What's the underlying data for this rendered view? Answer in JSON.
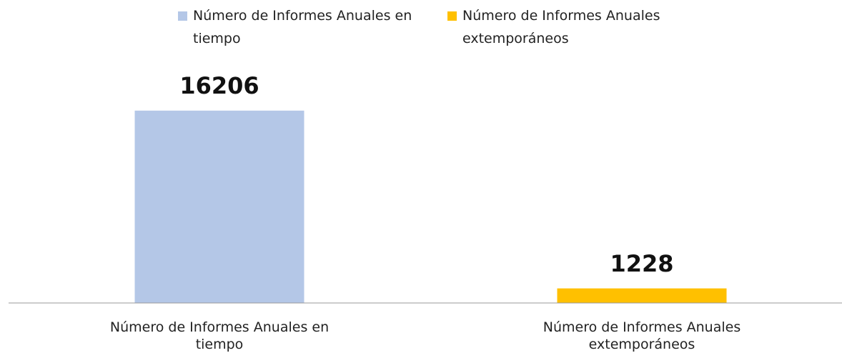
{
  "chart_data": {
    "type": "bar",
    "categories": [
      "Número de Informes Anuales en tiempo",
      "Número de Informes Anuales extemporáneos"
    ],
    "values": [
      16206,
      1228
    ],
    "colors": [
      "#b4c7e7",
      "#ffc000"
    ],
    "ylim": [
      0,
      18000
    ]
  }
}
